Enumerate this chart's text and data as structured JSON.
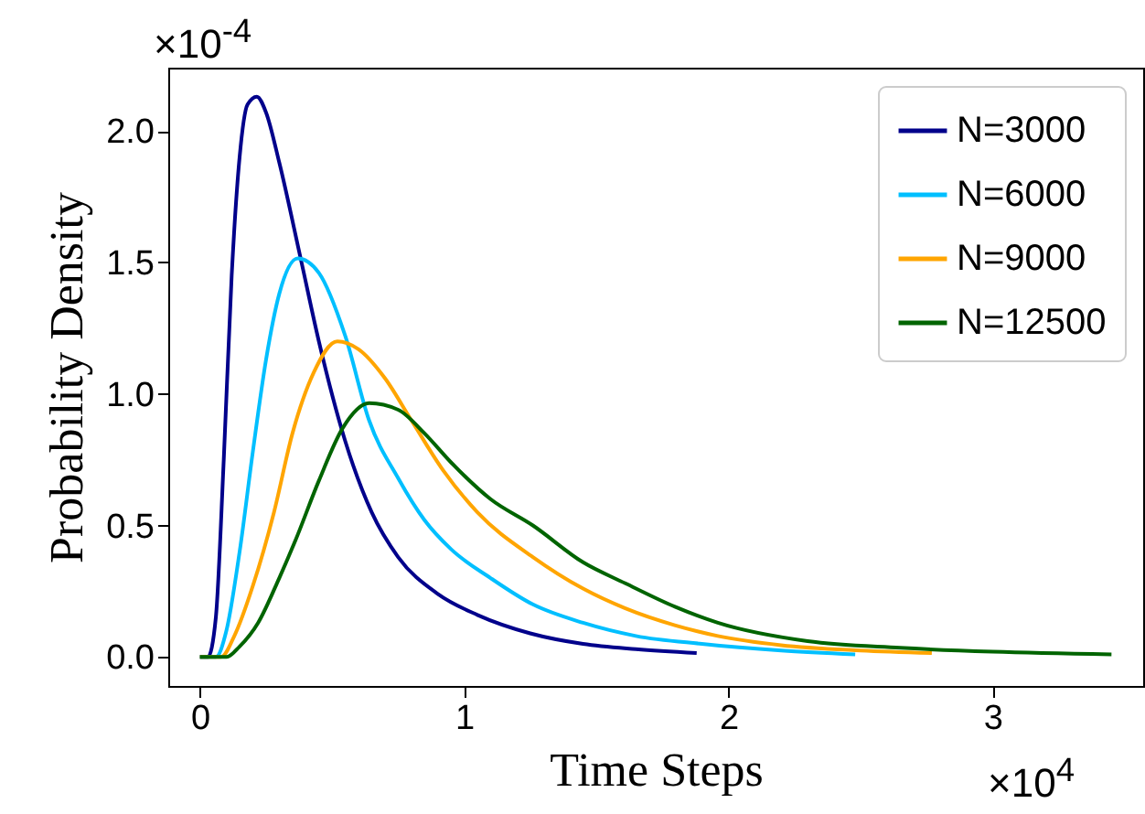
{
  "chart_data": {
    "type": "line",
    "xlabel": "Time Steps",
    "ylabel": "Probability Density",
    "annotations": [
      "×10$^{-4}$",
      "×10$^{4}$"
    ],
    "xlim": [
      -0.12,
      3.57
    ],
    "ylim": [
      -0.11,
      2.24
    ],
    "xticks": [
      0,
      1,
      2,
      3
    ],
    "yticks": [
      {
        "value": 0,
        "label": "0.0"
      },
      {
        "value": 0.5,
        "label": "0.5"
      },
      {
        "value": 1,
        "label": "1.0"
      },
      {
        "value": 1.5,
        "label": "1.5"
      },
      {
        "value": 2,
        "label": "2.0"
      }
    ],
    "grid": false,
    "legend": "top right",
    "marker": "none",
    "line_style": "solid",
    "series": [
      {
        "name": "N=3000",
        "color": "#00008b",
        "x": [
          0,
          0.03,
          0.06,
          0.09,
          0.12,
          0.15,
          0.18,
          0.215,
          0.25,
          0.3,
          0.38,
          0.45,
          0.55,
          0.65,
          0.75,
          0.9,
          1.05,
          1.25,
          1.45,
          1.65,
          1.88
        ],
        "values": [
          0,
          0,
          0.15,
          0.75,
          1.45,
          1.9,
          2.1,
          2.13,
          2.07,
          1.88,
          1.52,
          1.2,
          0.82,
          0.55,
          0.38,
          0.24,
          0.16,
          0.09,
          0.05,
          0.03,
          0.015
        ]
      },
      {
        "name": "N=6000",
        "color": "#00bfff",
        "x": [
          0,
          0.06,
          0.1,
          0.15,
          0.2,
          0.25,
          0.3,
          0.37,
          0.45,
          0.55,
          0.64,
          0.75,
          0.85,
          0.95,
          1.1,
          1.26,
          1.45,
          1.65,
          1.9,
          2.2,
          2.48
        ],
        "values": [
          0,
          0,
          0.1,
          0.4,
          0.78,
          1.13,
          1.38,
          1.515,
          1.46,
          1.22,
          0.9,
          0.68,
          0.52,
          0.41,
          0.3,
          0.2,
          0.13,
          0.08,
          0.05,
          0.025,
          0.01
        ]
      },
      {
        "name": "N=9000",
        "color": "#ffa500",
        "x": [
          0,
          0.08,
          0.13,
          0.2,
          0.28,
          0.35,
          0.43,
          0.52,
          0.6,
          0.7,
          0.8,
          0.92,
          1.05,
          1.26,
          1.45,
          1.61,
          1.8,
          1.96,
          2.2,
          2.5,
          2.77
        ],
        "values": [
          0,
          0,
          0.08,
          0.27,
          0.55,
          0.85,
          1.08,
          1.2,
          1.17,
          1.06,
          0.9,
          0.71,
          0.55,
          0.38,
          0.26,
          0.185,
          0.12,
          0.08,
          0.045,
          0.025,
          0.015
        ]
      },
      {
        "name": "N=12500",
        "color": "#006400",
        "x": [
          0,
          0.1,
          0.15,
          0.22,
          0.3,
          0.36,
          0.45,
          0.54,
          0.64,
          0.75,
          0.85,
          0.95,
          1.1,
          1.26,
          1.45,
          1.61,
          1.8,
          1.96,
          2.3,
          2.65,
          3.0,
          3.45
        ],
        "values": [
          0,
          0,
          0.04,
          0.13,
          0.3,
          0.44,
          0.67,
          0.87,
          0.965,
          0.94,
          0.85,
          0.74,
          0.6,
          0.5,
          0.36,
          0.28,
          0.19,
          0.13,
          0.06,
          0.035,
          0.02,
          0.01
        ]
      }
    ]
  }
}
